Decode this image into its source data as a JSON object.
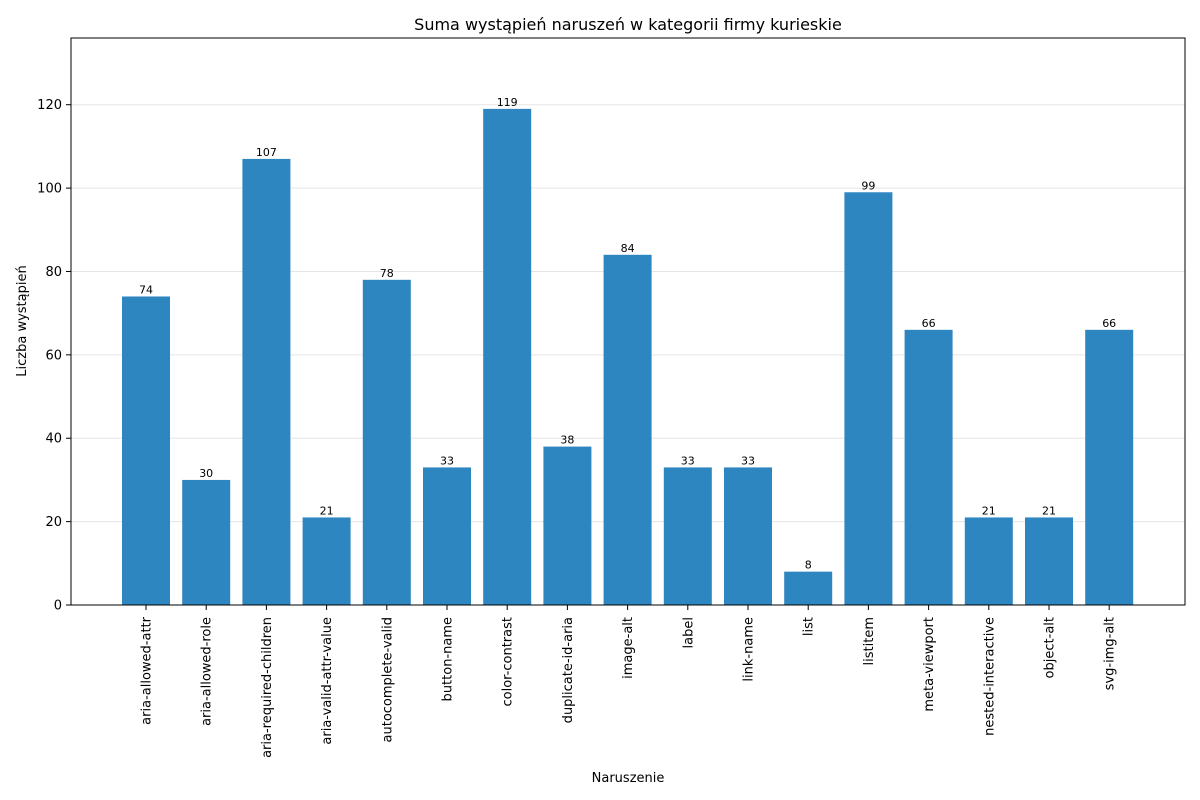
{
  "chart_data": {
    "type": "bar",
    "title": "Suma wystąpień naruszeń w kategorii firmy kurieskie",
    "xlabel": "Naruszenie",
    "ylabel": "Liczba wystąpień",
    "categories": [
      "aria-allowed-attr",
      "aria-allowed-role",
      "aria-required-children",
      "aria-valid-attr-value",
      "autocomplete-valid",
      "button-name",
      "color-contrast",
      "duplicate-id-aria",
      "image-alt",
      "label",
      "link-name",
      "list",
      "listitem",
      "meta-viewport",
      "nested-interactive",
      "object-alt",
      "svg-img-alt"
    ],
    "values": [
      74,
      30,
      107,
      21,
      78,
      33,
      119,
      38,
      84,
      33,
      33,
      8,
      99,
      66,
      21,
      21,
      66
    ],
    "ylim": [
      0,
      136
    ],
    "yticks": [
      0,
      20,
      40,
      60,
      80,
      100,
      120
    ],
    "grid": "horizontal",
    "bar_color": "#2e86c1"
  }
}
